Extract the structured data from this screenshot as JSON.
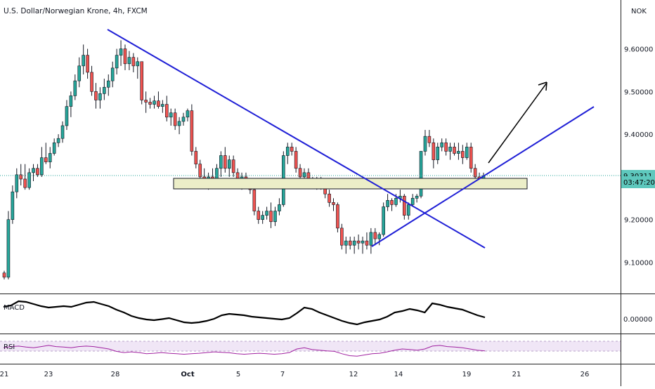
{
  "header": {
    "symbol_title": "U.S. Dollar/Norwegian Krone, 4h, FXCM",
    "currency": "NOK"
  },
  "indicators": {
    "macd_label": "MACD",
    "rsi_label": "RSI",
    "macd_tick": "0.00000"
  },
  "colors": {
    "bull": "#26a69a",
    "bear": "#ef5350",
    "wick": "#131722",
    "trendline": "#1f1fd6",
    "arrow": "#000000",
    "zone_fill": "#eceec8",
    "macd_line": "#000000",
    "rsi_line": "#a020a0",
    "price_badge": "#5ec8bd"
  },
  "chart_data": {
    "type": "candlestick",
    "x_ticks": [
      "21",
      "23",
      "28",
      "Oct",
      "5",
      "7",
      "12",
      "14",
      "19",
      "21",
      "26"
    ],
    "y_ticks": [
      "9.10000",
      "9.20000",
      "9.30000",
      "9.40000",
      "9.50000",
      "9.60000"
    ],
    "ylim": [
      9.04,
      9.665
    ],
    "current_price": "9.30311",
    "countdown": "03:47:20",
    "candles": [
      [
        9.075,
        9.08,
        9.06,
        9.065
      ],
      [
        9.065,
        9.22,
        9.06,
        9.2
      ],
      [
        9.2,
        9.28,
        9.19,
        9.265
      ],
      [
        9.265,
        9.32,
        9.25,
        9.305
      ],
      [
        9.305,
        9.33,
        9.28,
        9.295
      ],
      [
        9.295,
        9.33,
        9.27,
        9.275
      ],
      [
        9.275,
        9.32,
        9.27,
        9.31
      ],
      [
        9.31,
        9.33,
        9.29,
        9.32
      ],
      [
        9.32,
        9.33,
        9.3,
        9.305
      ],
      [
        9.305,
        9.37,
        9.3,
        9.345
      ],
      [
        9.345,
        9.38,
        9.33,
        9.335
      ],
      [
        9.335,
        9.37,
        9.32,
        9.355
      ],
      [
        9.355,
        9.39,
        9.35,
        9.38
      ],
      [
        9.38,
        9.4,
        9.37,
        9.39
      ],
      [
        9.39,
        9.43,
        9.38,
        9.42
      ],
      [
        9.42,
        9.48,
        9.41,
        9.465
      ],
      [
        9.465,
        9.5,
        9.44,
        9.49
      ],
      [
        9.49,
        9.54,
        9.48,
        9.525
      ],
      [
        9.525,
        9.58,
        9.51,
        9.56
      ],
      [
        9.56,
        9.61,
        9.54,
        9.585
      ],
      [
        9.585,
        9.6,
        9.53,
        9.545
      ],
      [
        9.545,
        9.56,
        9.49,
        9.5
      ],
      [
        9.5,
        9.52,
        9.46,
        9.48
      ],
      [
        9.48,
        9.51,
        9.46,
        9.495
      ],
      [
        9.495,
        9.53,
        9.48,
        9.51
      ],
      [
        9.51,
        9.54,
        9.49,
        9.525
      ],
      [
        9.525,
        9.57,
        9.51,
        9.555
      ],
      [
        9.555,
        9.6,
        9.54,
        9.585
      ],
      [
        9.585,
        9.62,
        9.56,
        9.6
      ],
      [
        9.6,
        9.61,
        9.55,
        9.565
      ],
      [
        9.565,
        9.595,
        9.55,
        9.58
      ],
      [
        9.58,
        9.59,
        9.545,
        9.56
      ],
      [
        9.56,
        9.58,
        9.53,
        9.57
      ],
      [
        9.57,
        9.57,
        9.47,
        9.48
      ],
      [
        9.48,
        9.5,
        9.45,
        9.475
      ],
      [
        9.475,
        9.485,
        9.46,
        9.47
      ],
      [
        9.47,
        9.49,
        9.46,
        9.478
      ],
      [
        9.478,
        9.5,
        9.46,
        9.465
      ],
      [
        9.465,
        9.48,
        9.45,
        9.47
      ],
      [
        9.47,
        9.49,
        9.43,
        9.44
      ],
      [
        9.44,
        9.46,
        9.42,
        9.45
      ],
      [
        9.45,
        9.46,
        9.41,
        9.42
      ],
      [
        9.42,
        9.44,
        9.4,
        9.43
      ],
      [
        9.43,
        9.45,
        9.42,
        9.44
      ],
      [
        9.44,
        9.46,
        9.43,
        9.455
      ],
      [
        9.455,
        9.47,
        9.35,
        9.36
      ],
      [
        9.36,
        9.37,
        9.32,
        9.33
      ],
      [
        9.33,
        9.34,
        9.29,
        9.3
      ],
      [
        9.3,
        9.32,
        9.28,
        9.29
      ],
      [
        9.29,
        9.31,
        9.27,
        9.3
      ],
      [
        9.3,
        9.32,
        9.28,
        9.295
      ],
      [
        9.295,
        9.33,
        9.29,
        9.32
      ],
      [
        9.32,
        9.36,
        9.3,
        9.35
      ],
      [
        9.35,
        9.37,
        9.31,
        9.32
      ],
      [
        9.32,
        9.35,
        9.3,
        9.34
      ],
      [
        9.34,
        9.35,
        9.3,
        9.31
      ],
      [
        9.31,
        9.32,
        9.28,
        9.29
      ],
      [
        9.29,
        9.31,
        9.27,
        9.3
      ],
      [
        9.3,
        9.31,
        9.28,
        9.285
      ],
      [
        9.285,
        9.29,
        9.26,
        9.27
      ],
      [
        9.27,
        9.28,
        9.21,
        9.22
      ],
      [
        9.22,
        9.23,
        9.19,
        9.2
      ],
      [
        9.2,
        9.22,
        9.19,
        9.21
      ],
      [
        9.21,
        9.23,
        9.2,
        9.22
      ],
      [
        9.22,
        9.24,
        9.18,
        9.195
      ],
      [
        9.195,
        9.23,
        9.185,
        9.22
      ],
      [
        9.22,
        9.25,
        9.21,
        9.235
      ],
      [
        9.235,
        9.36,
        9.23,
        9.35
      ],
      [
        9.35,
        9.38,
        9.33,
        9.37
      ],
      [
        9.37,
        9.38,
        9.35,
        9.36
      ],
      [
        9.36,
        9.37,
        9.31,
        9.32
      ],
      [
        9.32,
        9.33,
        9.29,
        9.3
      ],
      [
        9.3,
        9.32,
        9.29,
        9.31
      ],
      [
        9.31,
        9.32,
        9.29,
        9.295
      ],
      [
        9.295,
        9.3,
        9.28,
        9.285
      ],
      [
        9.285,
        9.3,
        9.27,
        9.29
      ],
      [
        9.29,
        9.3,
        9.27,
        9.275
      ],
      [
        9.275,
        9.28,
        9.25,
        9.26
      ],
      [
        9.26,
        9.27,
        9.23,
        9.24
      ],
      [
        9.24,
        9.25,
        9.22,
        9.235
      ],
      [
        9.235,
        9.24,
        9.17,
        9.18
      ],
      [
        9.18,
        9.19,
        9.13,
        9.14
      ],
      [
        9.14,
        9.16,
        9.12,
        9.15
      ],
      [
        9.15,
        9.16,
        9.13,
        9.14
      ],
      [
        9.14,
        9.16,
        9.12,
        9.15
      ],
      [
        9.15,
        9.165,
        9.13,
        9.145
      ],
      [
        9.145,
        9.16,
        9.12,
        9.15
      ],
      [
        9.15,
        9.17,
        9.13,
        9.14
      ],
      [
        9.14,
        9.18,
        9.12,
        9.17
      ],
      [
        9.17,
        9.18,
        9.14,
        9.155
      ],
      [
        9.155,
        9.17,
        9.14,
        9.165
      ],
      [
        9.165,
        9.24,
        9.16,
        9.23
      ],
      [
        9.23,
        9.26,
        9.22,
        9.245
      ],
      [
        9.245,
        9.25,
        9.22,
        9.235
      ],
      [
        9.235,
        9.26,
        9.23,
        9.25
      ],
      [
        9.25,
        9.27,
        9.24,
        9.255
      ],
      [
        9.255,
        9.26,
        9.2,
        9.21
      ],
      [
        9.21,
        9.24,
        9.2,
        9.235
      ],
      [
        9.235,
        9.26,
        9.23,
        9.25
      ],
      [
        9.25,
        9.26,
        9.24,
        9.255
      ],
      [
        9.255,
        9.36,
        9.25,
        9.36
      ],
      [
        9.36,
        9.41,
        9.35,
        9.395
      ],
      [
        9.395,
        9.41,
        9.37,
        9.38
      ],
      [
        9.38,
        9.39,
        9.32,
        9.34
      ],
      [
        9.34,
        9.38,
        9.33,
        9.37
      ],
      [
        9.37,
        9.39,
        9.36,
        9.38
      ],
      [
        9.38,
        9.39,
        9.35,
        9.36
      ],
      [
        9.36,
        9.38,
        9.34,
        9.37
      ],
      [
        9.37,
        9.38,
        9.35,
        9.355
      ],
      [
        9.355,
        9.38,
        9.34,
        9.36
      ],
      [
        9.36,
        9.375,
        9.33,
        9.345
      ],
      [
        9.345,
        9.38,
        9.34,
        9.37
      ],
      [
        9.37,
        9.38,
        9.31,
        9.32
      ],
      [
        9.32,
        9.33,
        9.29,
        9.3
      ],
      [
        9.3,
        9.31,
        9.285,
        9.295
      ],
      [
        9.295,
        9.31,
        9.29,
        9.303
      ]
    ],
    "macd": [
      0.5,
      0.6,
      0.9,
      0.85,
      0.7,
      0.55,
      0.45,
      0.5,
      0.55,
      0.5,
      0.65,
      0.8,
      0.85,
      0.7,
      0.55,
      0.3,
      0.1,
      -0.15,
      -0.3,
      -0.4,
      -0.45,
      -0.38,
      -0.3,
      -0.45,
      -0.6,
      -0.65,
      -0.6,
      -0.5,
      -0.35,
      -0.1,
      0.0,
      -0.05,
      -0.1,
      -0.2,
      -0.25,
      -0.3,
      -0.35,
      -0.4,
      -0.3,
      0.05,
      0.45,
      0.35,
      0.1,
      -0.1,
      -0.3,
      -0.5,
      -0.65,
      -0.75,
      -0.6,
      -0.5,
      -0.4,
      -0.2,
      0.1,
      0.2,
      0.35,
      0.25,
      0.1,
      0.75,
      0.65,
      0.5,
      0.4,
      0.3,
      0.1,
      -0.1,
      -0.25
    ],
    "rsi": [
      0.55,
      0.6,
      0.62,
      0.58,
      0.55,
      0.6,
      0.65,
      0.6,
      0.58,
      0.55,
      0.6,
      0.62,
      0.6,
      0.55,
      0.5,
      0.4,
      0.35,
      0.38,
      0.35,
      0.3,
      0.32,
      0.35,
      0.32,
      0.3,
      0.28,
      0.3,
      0.32,
      0.35,
      0.38,
      0.36,
      0.34,
      0.3,
      0.28,
      0.3,
      0.32,
      0.3,
      0.28,
      0.3,
      0.35,
      0.5,
      0.55,
      0.48,
      0.45,
      0.42,
      0.4,
      0.3,
      0.22,
      0.2,
      0.25,
      0.3,
      0.32,
      0.38,
      0.45,
      0.5,
      0.48,
      0.45,
      0.5,
      0.62,
      0.65,
      0.6,
      0.58,
      0.55,
      0.5,
      0.45,
      0.42
    ]
  }
}
